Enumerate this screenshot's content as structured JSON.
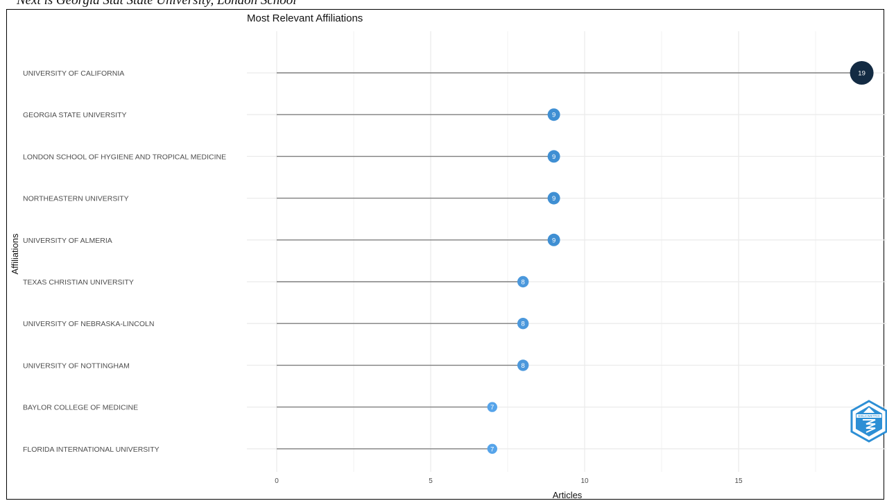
{
  "header": {
    "text": "Next is Georgia Stat State University, London School"
  },
  "chart_data": {
    "type": "lollipop",
    "title": "Most Relevant Affiliations",
    "xlabel": "Articles",
    "ylabel": "Affiliations",
    "xlim": [
      0,
      19
    ],
    "x_ticks": [
      0,
      5,
      10,
      15
    ],
    "grid": true,
    "colors": {
      "max_point": "#132b43",
      "point_9": "#3f8fd3",
      "point_8": "#4b98dc",
      "point_7": "#56a4ea",
      "stem": "#7f7f7f",
      "grid": "#ebebeb"
    },
    "categories": [
      "UNIVERSITY OF CALIFORNIA",
      "GEORGIA STATE UNIVERSITY",
      "LONDON SCHOOL OF HYGIENE AND TROPICAL MEDICINE",
      "NORTHEASTERN UNIVERSITY",
      "UNIVERSITY OF ALMERIA",
      "TEXAS CHRISTIAN UNIVERSITY",
      "UNIVERSITY OF NEBRASKA-LINCOLN",
      "UNIVERSITY OF NOTTINGHAM",
      "BAYLOR COLLEGE OF MEDICINE",
      "FLORIDA INTERNATIONAL UNIVERSITY"
    ],
    "values": [
      19,
      9,
      9,
      9,
      9,
      8,
      8,
      8,
      7,
      7
    ]
  },
  "logo": {
    "icon": "bibliometrix-hexagon-logo",
    "text": "BIBLIOMETRIX",
    "color": "#2d8fd5"
  }
}
